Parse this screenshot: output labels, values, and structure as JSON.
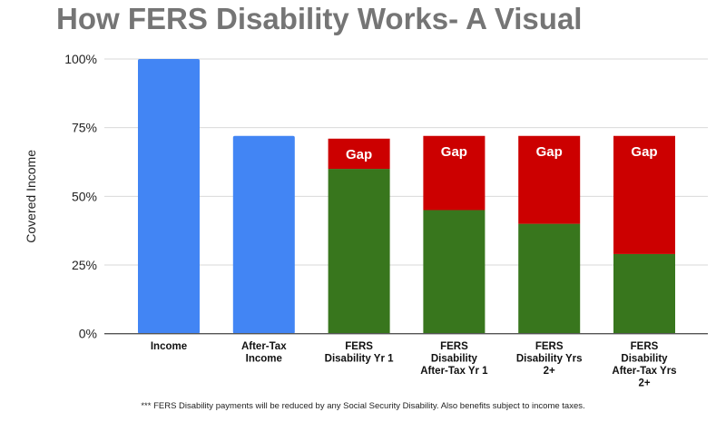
{
  "chart_data": {
    "type": "bar",
    "stacked": true,
    "title": "How FERS Disability Works- A Visual",
    "xlabel": "",
    "ylabel": "Covered Income",
    "ylim": [
      0,
      100
    ],
    "yticks": [
      "0%",
      "25%",
      "50%",
      "75%",
      "100%"
    ],
    "grid": true,
    "categories": [
      "Income",
      "After-Tax Income",
      "FERS Disability Yr 1",
      "FERS Disability After-Tax Yr 1",
      "FERS Disability Yrs 2+",
      "FERS Disability After-Tax Yrs 2+"
    ],
    "category_lines": [
      [
        "Income"
      ],
      [
        "After-Tax",
        "Income"
      ],
      [
        "FERS",
        "Disability Yr 1"
      ],
      [
        "FERS",
        "Disability",
        "After-Tax Yr 1"
      ],
      [
        "FERS",
        "Disability Yrs",
        "2+"
      ],
      [
        "FERS",
        "Disability",
        "After-Tax Yrs",
        "2+"
      ]
    ],
    "series": [
      {
        "values": [
          100,
          72,
          0,
          0,
          0,
          0
        ],
        "color": "#4285f4"
      },
      {
        "values": [
          0,
          0,
          60,
          45,
          40,
          29
        ],
        "color": "#38761d"
      },
      {
        "name": "Gap",
        "values": [
          0,
          0,
          11,
          27,
          32,
          43
        ],
        "color": "#cc0000",
        "data_label": "Gap"
      }
    ],
    "footnote": "*** FERS Disability payments will be reduced by any Social Security Disability.  Also benefits subject to income taxes."
  }
}
